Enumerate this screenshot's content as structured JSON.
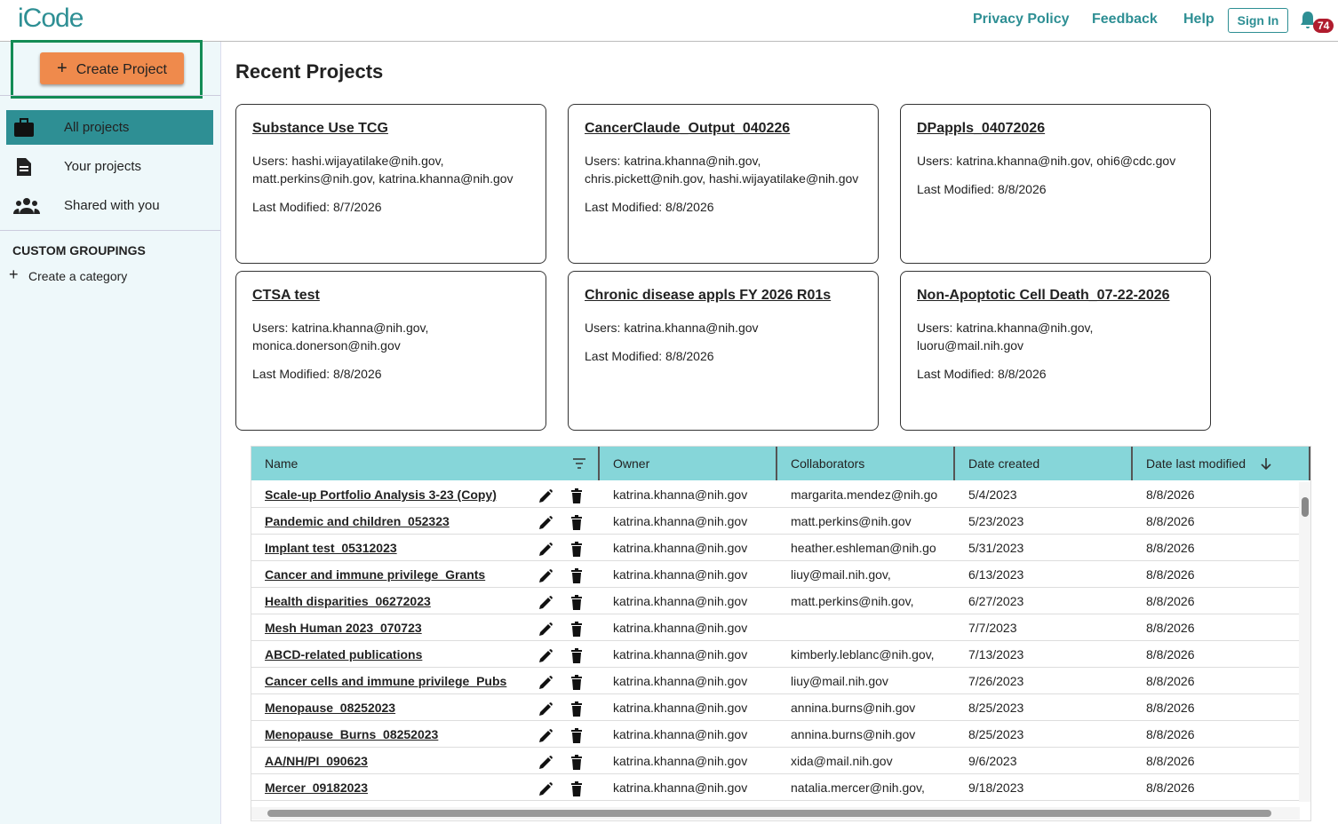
{
  "header": {
    "logo": "iCode",
    "nav": [
      "Privacy Policy",
      "Feedback",
      "Help"
    ],
    "sign_in": "Sign In",
    "notification_count": "74"
  },
  "sidebar": {
    "create_project": "Create Project",
    "nav": [
      "All projects",
      "Your projects",
      "Shared with you"
    ],
    "custom_groupings_title": "CUSTOM GROUPINGS",
    "create_category": "Create a category"
  },
  "main": {
    "title": "Recent Projects",
    "cards": [
      {
        "title": "Substance Use TCG",
        "users": "Users: hashi.wijayatilake@nih.gov, matt.perkins@nih.gov, katrina.khanna@nih.gov",
        "modified": "Last Modified: 8/7/2026"
      },
      {
        "title": "CancerClaude_Output_040226",
        "users": "Users: katrina.khanna@nih.gov, chris.pickett@nih.gov, hashi.wijayatilake@nih.gov",
        "modified": "Last Modified: 8/8/2026"
      },
      {
        "title": "DPappls_04072026",
        "users": "Users: katrina.khanna@nih.gov, ohi6@cdc.gov",
        "modified": "Last Modified: 8/8/2026"
      },
      {
        "title": "CTSA test",
        "users": "Users: katrina.khanna@nih.gov, monica.donerson@nih.gov",
        "modified": "Last Modified: 8/8/2026"
      },
      {
        "title": "Chronic disease appls FY 2026 R01s",
        "users": "Users: katrina.khanna@nih.gov",
        "modified": "Last Modified: 8/8/2026"
      },
      {
        "title": "Non-Apoptotic Cell Death_07-22-2026",
        "users": "Users: katrina.khanna@nih.gov, luoru@mail.nih.gov",
        "modified": "Last Modified: 8/8/2026"
      }
    ]
  },
  "table": {
    "columns": [
      "Name",
      "Owner",
      "Collaborators",
      "Date created",
      "Date last modified"
    ],
    "rows": [
      [
        "Scale-up Portfolio Analysis 3-23 (Copy)",
        "katrina.khanna@nih.gov",
        "margarita.mendez@nih.go",
        "5/4/2023",
        "8/8/2026"
      ],
      [
        "Pandemic and children_052323",
        "katrina.khanna@nih.gov",
        "matt.perkins@nih.gov",
        "5/23/2023",
        "8/8/2026"
      ],
      [
        "Implant test_05312023",
        "katrina.khanna@nih.gov",
        "heather.eshleman@nih.go",
        "5/31/2023",
        "8/8/2026"
      ],
      [
        "Cancer and immune privilege_Grants",
        "katrina.khanna@nih.gov",
        "liuy@mail.nih.gov,",
        "6/13/2023",
        "8/8/2026"
      ],
      [
        "Health disparities_06272023",
        "katrina.khanna@nih.gov",
        "matt.perkins@nih.gov,",
        "6/27/2023",
        "8/8/2026"
      ],
      [
        "Mesh Human 2023_070723",
        "katrina.khanna@nih.gov",
        null,
        "7/7/2023",
        "8/8/2026"
      ],
      [
        "ABCD-related publications",
        "katrina.khanna@nih.gov",
        "kimberly.leblanc@nih.gov,",
        "7/13/2023",
        "8/8/2026"
      ],
      [
        "Cancer cells and immune privilege_Pubs",
        "katrina.khanna@nih.gov",
        "liuy@mail.nih.gov",
        "7/26/2023",
        "8/8/2026"
      ],
      [
        "Menopause_08252023",
        "katrina.khanna@nih.gov",
        "annina.burns@nih.gov",
        "8/25/2023",
        "8/8/2026"
      ],
      [
        "Menopause_Burns_08252023",
        "katrina.khanna@nih.gov",
        "annina.burns@nih.gov",
        "8/25/2023",
        "8/8/2026"
      ],
      [
        "AA/NH/PI_090623",
        "katrina.khanna@nih.gov",
        "xida@mail.nih.gov",
        "9/6/2023",
        "8/8/2026"
      ],
      [
        "Mercer_09182023",
        "katrina.khanna@nih.gov",
        "natalia.mercer@nih.gov,",
        "9/18/2023",
        "8/8/2026"
      ]
    ]
  }
}
